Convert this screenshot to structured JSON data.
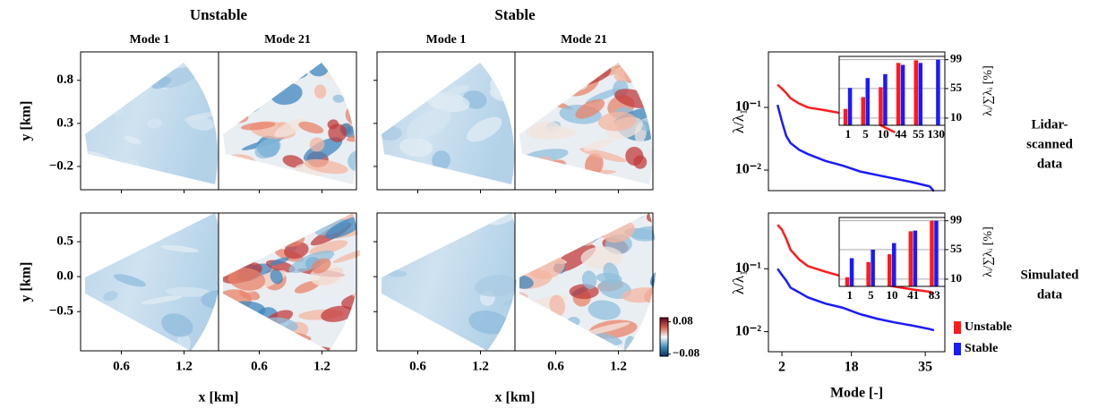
{
  "chart_data": [
    {
      "type": "field",
      "group_titles": [
        "Unstable",
        "Stable"
      ],
      "panel_titles": [
        "Mode 1",
        "Mode 21",
        "Mode 1",
        "Mode 21"
      ],
      "xlabel": "x [km]",
      "ylabel": "y [km]",
      "xlim": [
        0.21,
        1.53
      ],
      "xticks": [
        0.6,
        1.2
      ],
      "rows": [
        {
          "ylim": [
            -0.47,
            1.13
          ],
          "yticks": [
            0.8,
            0.3,
            {
              "value": -0.2,
              "label": "−0.2"
            }
          ]
        },
        {
          "ylim": [
            -1.06,
            0.91
          ],
          "yticks": [
            0.5,
            {
              "value": 0,
              "label": "0.0"
            },
            {
              "value": -0.5,
              "label": "−0.5"
            }
          ]
        }
      ],
      "colorbar": {
        "lim": [
          -0.09,
          0.1
        ],
        "ticks": [
          0.08,
          {
            "value": -0.08,
            "label": "−0.08"
          }
        ]
      }
    },
    {
      "type": "line",
      "side_label": [
        "Lidar-",
        "scanned",
        "data"
      ],
      "ylabel": "λ/λ₁",
      "xlim": [
        -1.1,
        39.5
      ],
      "log_y": true,
      "ylim": [
        0.0047,
        0.77
      ],
      "yticks": [
        {
          "value": 0.1,
          "label": "10⁻¹"
        },
        {
          "value": 0.01,
          "label": "10⁻²"
        }
      ],
      "x": [
        1,
        2,
        3,
        4,
        6,
        8,
        12,
        16,
        20,
        24,
        28,
        32,
        36,
        37
      ],
      "series": [
        {
          "color": "#ff1a1a",
          "values": [
            0.23,
            0.2,
            0.17,
            0.14,
            0.115,
            0.1,
            0.09,
            0.08,
            0.07,
            0.055,
            0.04,
            null,
            null,
            null
          ]
        },
        {
          "color": "#1a1aff",
          "values": [
            0.11,
            0.06,
            0.035,
            0.027,
            0.021,
            0.018,
            0.014,
            0.0118,
            0.0095,
            0.0083,
            0.0073,
            0.0064,
            0.0055,
            0.0046
          ]
        }
      ],
      "inset": {
        "type": "bar",
        "ylabel": "λᵢ/∑λᵢ [%]",
        "categories": [
          "1",
          "5",
          "10",
          "44",
          "55",
          "130"
        ],
        "ylim": [
          -1,
          104
        ],
        "yticks": [
          99,
          55,
          10
        ],
        "grid": true,
        "series": [
          {
            "color": "#ff1a1a",
            "values": [
              24,
              42,
              57,
              94,
              98,
              null
            ]
          },
          {
            "color": "#1a1aff",
            "values": [
              56,
              71,
              77,
              91,
              94,
              99
            ]
          }
        ]
      }
    },
    {
      "type": "line",
      "side_label": [
        "Simulated",
        "data"
      ],
      "ylabel": "λ/λ₁",
      "xlabel": "Mode [-]",
      "xlim": [
        -1.1,
        39.5
      ],
      "xticks": [
        2,
        18,
        35
      ],
      "log_y": true,
      "ylim": [
        0.0048,
        0.77
      ],
      "yticks": [
        {
          "value": 0.1,
          "label": "10⁻¹"
        },
        {
          "value": 0.01,
          "label": "10⁻²"
        }
      ],
      "x": [
        1,
        2,
        3,
        4,
        6,
        8,
        12,
        16,
        20,
        24,
        28,
        32,
        36,
        37
      ],
      "legend": "bottom-right-outside",
      "series": [
        {
          "name": "Unstable",
          "color": "#ff1a1a",
          "values": [
            0.5,
            0.42,
            0.3,
            0.2,
            0.14,
            0.11,
            0.09,
            0.075,
            0.065,
            0.058,
            0.052,
            0.047,
            0.043,
            0.04
          ]
        },
        {
          "name": "Stable",
          "color": "#1a1aff",
          "values": [
            0.1,
            0.08,
            0.065,
            0.05,
            0.042,
            0.035,
            0.028,
            0.024,
            0.019,
            0.016,
            0.014,
            0.0125,
            0.011,
            0.0105
          ]
        }
      ],
      "inset": {
        "type": "bar",
        "ylabel": "λᵢ/∑λᵢ [%]",
        "categories": [
          "1",
          "5",
          "10",
          "41",
          "83"
        ],
        "ylim": [
          -1,
          104
        ],
        "yticks": [
          99,
          55,
          10
        ],
        "grid": true,
        "series": [
          {
            "color": "#ff1a1a",
            "values": [
              13,
              36,
              48,
              83,
              99
            ]
          },
          {
            "color": "#1a1aff",
            "values": [
              42,
              55,
              65,
              84,
              99
            ]
          }
        ]
      }
    }
  ]
}
